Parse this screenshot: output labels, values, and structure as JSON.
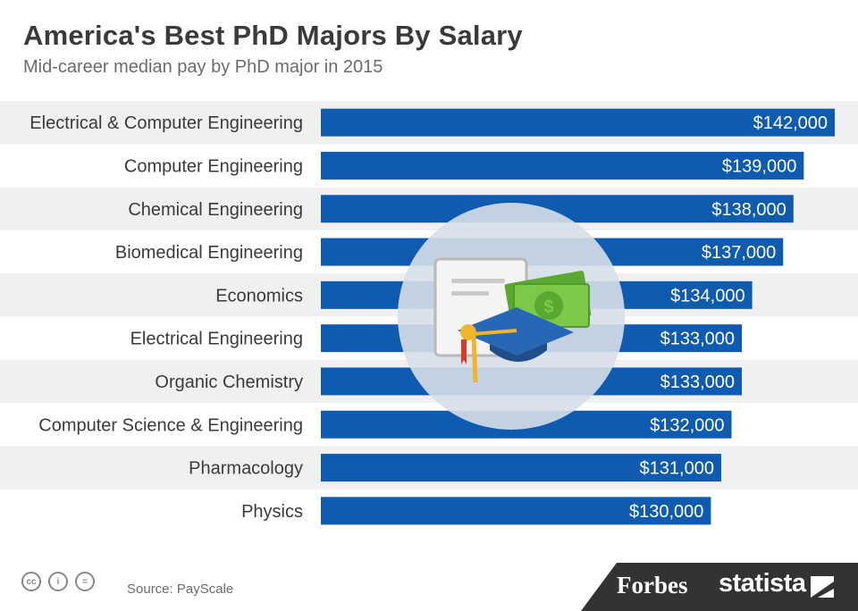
{
  "header": {
    "title": "America's Best PhD Majors By Salary",
    "subtitle": "Mid-career median pay by PhD major in 2015"
  },
  "chart_data": {
    "type": "bar",
    "orientation": "horizontal",
    "categories": [
      "Electrical & Computer Engineering",
      "Computer Engineering",
      "Chemical Engineering",
      "Biomedical Engineering",
      "Economics",
      "Electrical Engineering",
      "Organic Chemistry",
      "Computer Science & Engineering",
      "Pharmacology",
      "Physics"
    ],
    "values": [
      142000,
      139000,
      138000,
      137000,
      134000,
      133000,
      133000,
      132000,
      131000,
      130000
    ],
    "value_labels": [
      "$142,000",
      "$139,000",
      "$138,000",
      "$137,000",
      "$134,000",
      "$133,000",
      "$133,000",
      "$132,000",
      "$131,000",
      "$130,000"
    ],
    "bar_color": "#0f5bb0",
    "stripe_color": "#f0f0f0",
    "grid": false,
    "legend": "none"
  },
  "footer": {
    "source": "Source: PayScale",
    "license_icons": [
      "cc-icon",
      "attribution-icon",
      "no-derivatives-icon"
    ],
    "license_glyphs": [
      "cc",
      "i",
      "="
    ],
    "brand_forbes": "Forbes",
    "brand_statista": "statista",
    "band_color": "#333333"
  }
}
